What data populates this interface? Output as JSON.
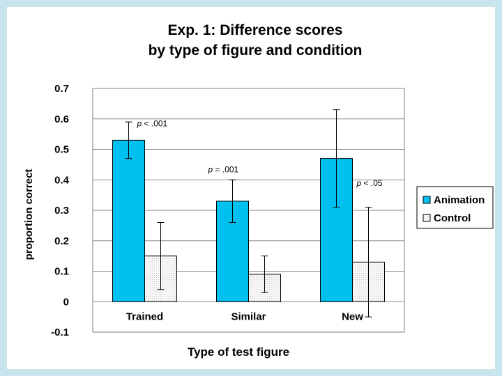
{
  "chart_data": {
    "type": "bar",
    "title_line1": "Exp. 1: Difference scores",
    "title_line2": "by type of figure and condition",
    "xlabel": "Type of test figure",
    "ylabel": "proportion correct",
    "ylim": [
      -0.1,
      0.7
    ],
    "yticks": [
      "-0.1",
      "0",
      "0.1",
      "0.2",
      "0.3",
      "0.4",
      "0.5",
      "0.6",
      "0.7"
    ],
    "ytick_values": [
      -0.1,
      0,
      0.1,
      0.2,
      0.3,
      0.4,
      0.5,
      0.6,
      0.7
    ],
    "categories": [
      "Trained",
      "Similar",
      "New"
    ],
    "series": [
      {
        "name": "Animation",
        "color": "#00c0f0",
        "values": [
          0.53,
          0.33,
          0.47
        ],
        "err_low": [
          0.47,
          0.26,
          0.31
        ],
        "err_high": [
          0.59,
          0.4,
          0.63
        ]
      },
      {
        "name": "Control",
        "color": "#f4f4f4",
        "values": [
          0.15,
          0.09,
          0.13
        ],
        "err_low": [
          0.04,
          0.03,
          -0.05
        ],
        "err_high": [
          0.26,
          0.15,
          0.31
        ]
      }
    ],
    "annotations": [
      {
        "p": "p",
        "rest": " < .001",
        "category": 0
      },
      {
        "p": "p",
        "rest": " = .001",
        "category": 1
      },
      {
        "p": "p",
        "rest": " < .05",
        "category": 2
      }
    ],
    "legend_position": "right"
  }
}
